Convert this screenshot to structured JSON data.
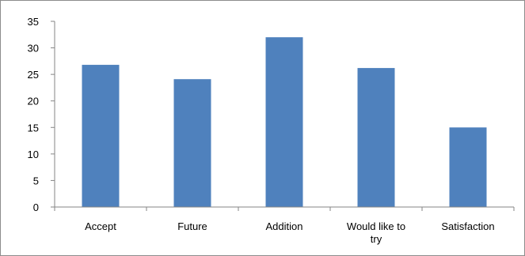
{
  "chart_data": {
    "type": "bar",
    "title": "",
    "xlabel": "",
    "ylabel": "",
    "categories": [
      "Accept",
      "Future",
      "Addition",
      "Would like to try",
      "Satisfaction"
    ],
    "category_lines": [
      [
        "Accept"
      ],
      [
        "Future"
      ],
      [
        "Addition"
      ],
      [
        "Would like to",
        "try"
      ],
      [
        "Satisfaction"
      ]
    ],
    "values": [
      26.8,
      24.1,
      32.0,
      26.2,
      15.0
    ],
    "ylim": [
      0,
      35
    ],
    "yticks": [
      "0",
      "5",
      "10",
      "15",
      "20",
      "25",
      "30",
      "35"
    ],
    "grid": false,
    "legend": "none",
    "bar_color": "#4f81bd"
  }
}
